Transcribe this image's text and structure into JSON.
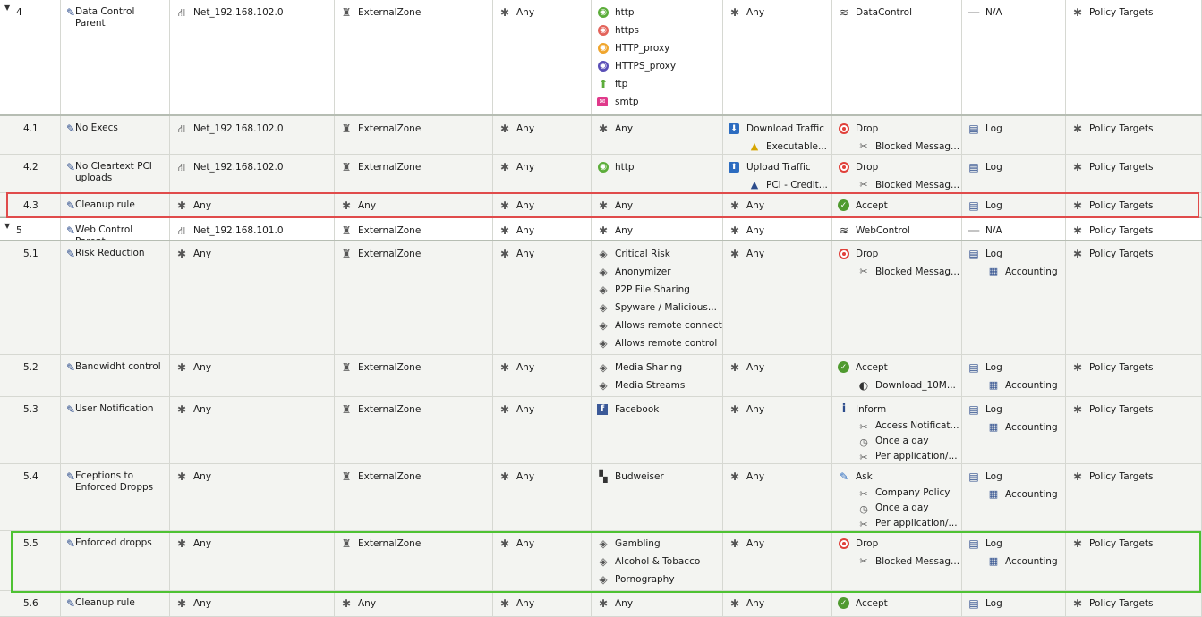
{
  "colors": {
    "highlight_red": "#e04b4b",
    "highlight_green": "#4ec233",
    "accent_blue": "#2c4c8c"
  },
  "rows": [
    {
      "id": "4",
      "parent": true,
      "top": 0,
      "height": 130,
      "name": "Data Control Parent",
      "source": [
        {
          "icon": "network-icon",
          "text": "Net_192.168.102.0"
        }
      ],
      "destination": [
        {
          "icon": "zone-icon",
          "text": "ExternalZone"
        }
      ],
      "vpn": [
        {
          "icon": "any-icon",
          "text": "Any"
        }
      ],
      "services": [
        {
          "icon": "http-icon",
          "text": "http"
        },
        {
          "icon": "https-icon",
          "text": "https"
        },
        {
          "icon": "http-proxy-icon",
          "text": "HTTP_proxy"
        },
        {
          "icon": "https-proxy-icon",
          "text": "HTTPS_proxy"
        },
        {
          "icon": "ftp-icon",
          "text": "ftp"
        },
        {
          "icon": "smtp-icon",
          "text": "smtp"
        }
      ],
      "content": [
        {
          "icon": "any-icon",
          "text": "Any"
        }
      ],
      "action": [
        {
          "icon": "layer-icon",
          "text": "DataControl"
        }
      ],
      "track": [
        {
          "icon": "na-icon",
          "text": "N/A"
        }
      ],
      "install": [
        {
          "icon": "any-icon",
          "text": "Policy Targets"
        }
      ]
    },
    {
      "id": "4.1",
      "parent": false,
      "top": 130,
      "height": 43,
      "name": "No Execs",
      "source": [
        {
          "icon": "network-icon",
          "text": "Net_192.168.102.0"
        }
      ],
      "destination": [
        {
          "icon": "zone-icon",
          "text": "ExternalZone"
        }
      ],
      "vpn": [
        {
          "icon": "any-icon",
          "text": "Any"
        }
      ],
      "services": [
        {
          "icon": "any-icon",
          "text": "Any"
        }
      ],
      "content": [
        {
          "icon": "download-icon",
          "text": "Download Traffic"
        },
        {
          "icon": "executable-icon",
          "text": "Executable...",
          "indent": true
        }
      ],
      "action": [
        {
          "icon": "drop-icon",
          "text": "Drop"
        },
        {
          "icon": "blocked-message-icon",
          "text": "Blocked Messag...",
          "indent": true
        }
      ],
      "track": [
        {
          "icon": "log-icon",
          "text": "Log"
        }
      ],
      "install": [
        {
          "icon": "any-icon",
          "text": "Policy Targets"
        }
      ]
    },
    {
      "id": "4.2",
      "parent": false,
      "top": 173,
      "height": 43,
      "name": "No Cleartext PCI uploads",
      "source": [
        {
          "icon": "network-icon",
          "text": "Net_192.168.102.0"
        }
      ],
      "destination": [
        {
          "icon": "zone-icon",
          "text": "ExternalZone"
        }
      ],
      "vpn": [
        {
          "icon": "any-icon",
          "text": "Any"
        }
      ],
      "services": [
        {
          "icon": "http-icon",
          "text": "http"
        }
      ],
      "content": [
        {
          "icon": "upload-icon",
          "text": "Upload Traffic"
        },
        {
          "icon": "pci-icon",
          "text": "PCI - Credit...",
          "indent": true
        }
      ],
      "action": [
        {
          "icon": "drop-icon",
          "text": "Drop"
        },
        {
          "icon": "blocked-message-icon",
          "text": "Blocked Messag...",
          "indent": true
        }
      ],
      "track": [
        {
          "icon": "log-icon",
          "text": "Log"
        }
      ],
      "install": [
        {
          "icon": "any-icon",
          "text": "Policy Targets"
        }
      ]
    },
    {
      "id": "4.3",
      "parent": false,
      "top": 216,
      "height": 27,
      "name": "Cleanup rule",
      "source": [
        {
          "icon": "any-icon",
          "text": "Any"
        }
      ],
      "destination": [
        {
          "icon": "any-icon",
          "text": "Any"
        }
      ],
      "vpn": [
        {
          "icon": "any-icon",
          "text": "Any"
        }
      ],
      "services": [
        {
          "icon": "any-icon",
          "text": "Any"
        }
      ],
      "content": [
        {
          "icon": "any-icon",
          "text": "Any"
        }
      ],
      "action": [
        {
          "icon": "accept-icon",
          "text": "Accept"
        }
      ],
      "track": [
        {
          "icon": "log-icon",
          "text": "Log"
        }
      ],
      "install": [
        {
          "icon": "any-icon",
          "text": "Policy Targets"
        }
      ]
    },
    {
      "id": "5",
      "parent": true,
      "top": 243,
      "height": 27,
      "name": "Web Control Parent",
      "source": [
        {
          "icon": "network-icon",
          "text": "Net_192.168.101.0"
        }
      ],
      "destination": [
        {
          "icon": "zone-icon",
          "text": "ExternalZone"
        }
      ],
      "vpn": [
        {
          "icon": "any-icon",
          "text": "Any"
        }
      ],
      "services": [
        {
          "icon": "any-icon",
          "text": "Any"
        }
      ],
      "content": [
        {
          "icon": "any-icon",
          "text": "Any"
        }
      ],
      "action": [
        {
          "icon": "layer-icon",
          "text": "WebControl"
        }
      ],
      "track": [
        {
          "icon": "na-icon",
          "text": "N/A"
        }
      ],
      "install": [
        {
          "icon": "any-icon",
          "text": "Policy Targets"
        }
      ]
    },
    {
      "id": "5.1",
      "parent": false,
      "top": 270,
      "height": 127,
      "name": "Risk Reduction",
      "source": [
        {
          "icon": "any-icon",
          "text": "Any"
        }
      ],
      "destination": [
        {
          "icon": "zone-icon",
          "text": "ExternalZone"
        }
      ],
      "vpn": [
        {
          "icon": "any-icon",
          "text": "Any"
        }
      ],
      "services": [
        {
          "icon": "category-icon",
          "text": "Critical Risk"
        },
        {
          "icon": "category-icon",
          "text": "Anonymizer"
        },
        {
          "icon": "category-icon",
          "text": "P2P File Sharing"
        },
        {
          "icon": "category-icon",
          "text": "Spyware / Malicious..."
        },
        {
          "icon": "category-icon",
          "text": "Allows remote connect"
        },
        {
          "icon": "category-icon",
          "text": "Allows remote control"
        }
      ],
      "content": [
        {
          "icon": "any-icon",
          "text": "Any"
        }
      ],
      "action": [
        {
          "icon": "drop-icon",
          "text": "Drop"
        },
        {
          "icon": "blocked-message-icon",
          "text": "Blocked Messag...",
          "indent": true
        }
      ],
      "track": [
        {
          "icon": "log-icon",
          "text": "Log"
        },
        {
          "icon": "accounting-icon",
          "text": "Accounting",
          "indent": true
        }
      ],
      "install": [
        {
          "icon": "any-icon",
          "text": "Policy Targets"
        }
      ]
    },
    {
      "id": "5.2",
      "parent": false,
      "top": 397,
      "height": 47,
      "name": "Bandwidht control",
      "source": [
        {
          "icon": "any-icon",
          "text": "Any"
        }
      ],
      "destination": [
        {
          "icon": "zone-icon",
          "text": "ExternalZone"
        }
      ],
      "vpn": [
        {
          "icon": "any-icon",
          "text": "Any"
        }
      ],
      "services": [
        {
          "icon": "category-icon",
          "text": "Media Sharing"
        },
        {
          "icon": "category-icon",
          "text": "Media Streams"
        }
      ],
      "content": [
        {
          "icon": "any-icon",
          "text": "Any"
        }
      ],
      "action": [
        {
          "icon": "accept-icon",
          "text": "Accept"
        },
        {
          "icon": "limit-icon",
          "text": "Download_10M...",
          "indent": true
        }
      ],
      "track": [
        {
          "icon": "log-icon",
          "text": "Log"
        },
        {
          "icon": "accounting-icon",
          "text": "Accounting",
          "indent": true
        }
      ],
      "install": [
        {
          "icon": "any-icon",
          "text": "Policy Targets"
        }
      ]
    },
    {
      "id": "5.3",
      "parent": false,
      "top": 444,
      "height": 75,
      "name": "User Notification",
      "source": [
        {
          "icon": "any-icon",
          "text": "Any"
        }
      ],
      "destination": [
        {
          "icon": "zone-icon",
          "text": "ExternalZone"
        }
      ],
      "vpn": [
        {
          "icon": "any-icon",
          "text": "Any"
        }
      ],
      "services": [
        {
          "icon": "facebook-icon",
          "text": "Facebook"
        }
      ],
      "content": [
        {
          "icon": "any-icon",
          "text": "Any"
        }
      ],
      "action": [
        {
          "icon": "inform-icon",
          "text": "Inform"
        },
        {
          "icon": "blocked-message-icon",
          "text": "Access Notificat...",
          "indent": true,
          "small": true
        },
        {
          "icon": "clock-icon",
          "text": "Once a day",
          "indent": true,
          "small": true
        },
        {
          "icon": "blocked-message-icon",
          "text": "Per application/...",
          "indent": true,
          "small": true
        }
      ],
      "track": [
        {
          "icon": "log-icon",
          "text": "Log"
        },
        {
          "icon": "accounting-icon",
          "text": "Accounting",
          "indent": true
        }
      ],
      "install": [
        {
          "icon": "any-icon",
          "text": "Policy Targets"
        }
      ]
    },
    {
      "id": "5.4",
      "parent": false,
      "top": 519,
      "height": 75,
      "name": "Eceptions to Enforced Dropps",
      "source": [
        {
          "icon": "any-icon",
          "text": "Any"
        }
      ],
      "destination": [
        {
          "icon": "zone-icon",
          "text": "ExternalZone"
        }
      ],
      "vpn": [
        {
          "icon": "any-icon",
          "text": "Any"
        }
      ],
      "services": [
        {
          "icon": "budweiser-icon",
          "text": "Budweiser"
        }
      ],
      "content": [
        {
          "icon": "any-icon",
          "text": "Any"
        }
      ],
      "action": [
        {
          "icon": "ask-icon",
          "text": "Ask"
        },
        {
          "icon": "blocked-message-icon",
          "text": "Company Policy",
          "indent": true,
          "small": true
        },
        {
          "icon": "clock-icon",
          "text": "Once a day",
          "indent": true,
          "small": true
        },
        {
          "icon": "blocked-message-icon",
          "text": "Per application/...",
          "indent": true,
          "small": true
        }
      ],
      "track": [
        {
          "icon": "log-icon",
          "text": "Log"
        },
        {
          "icon": "accounting-icon",
          "text": "Accounting",
          "indent": true
        }
      ],
      "install": [
        {
          "icon": "any-icon",
          "text": "Policy Targets"
        }
      ]
    },
    {
      "id": "5.5",
      "parent": false,
      "top": 594,
      "height": 67,
      "name": "Enforced dropps",
      "source": [
        {
          "icon": "any-icon",
          "text": "Any"
        }
      ],
      "destination": [
        {
          "icon": "zone-icon",
          "text": "ExternalZone"
        }
      ],
      "vpn": [
        {
          "icon": "any-icon",
          "text": "Any"
        }
      ],
      "services": [
        {
          "icon": "category-icon",
          "text": "Gambling"
        },
        {
          "icon": "category-icon",
          "text": "Alcohol & Tobacco"
        },
        {
          "icon": "category-icon",
          "text": "Pornography"
        }
      ],
      "content": [
        {
          "icon": "any-icon",
          "text": "Any"
        }
      ],
      "action": [
        {
          "icon": "drop-icon",
          "text": "Drop"
        },
        {
          "icon": "blocked-message-icon",
          "text": "Blocked Messag...",
          "indent": true
        }
      ],
      "track": [
        {
          "icon": "log-icon",
          "text": "Log"
        },
        {
          "icon": "accounting-icon",
          "text": "Accounting",
          "indent": true
        }
      ],
      "install": [
        {
          "icon": "any-icon",
          "text": "Policy Targets"
        }
      ]
    },
    {
      "id": "5.6",
      "parent": false,
      "top": 661,
      "height": 29,
      "name": "Cleanup rule",
      "source": [
        {
          "icon": "any-icon",
          "text": "Any"
        }
      ],
      "destination": [
        {
          "icon": "any-icon",
          "text": "Any"
        }
      ],
      "vpn": [
        {
          "icon": "any-icon",
          "text": "Any"
        }
      ],
      "services": [
        {
          "icon": "any-icon",
          "text": "Any"
        }
      ],
      "content": [
        {
          "icon": "any-icon",
          "text": "Any"
        }
      ],
      "action": [
        {
          "icon": "accept-icon",
          "text": "Accept"
        }
      ],
      "track": [
        {
          "icon": "log-icon",
          "text": "Log"
        }
      ],
      "install": [
        {
          "icon": "any-icon",
          "text": "Policy Targets"
        }
      ]
    }
  ],
  "highlights": [
    {
      "row": "4.3",
      "color": "red"
    },
    {
      "row": "5.5",
      "color": "green"
    }
  ]
}
